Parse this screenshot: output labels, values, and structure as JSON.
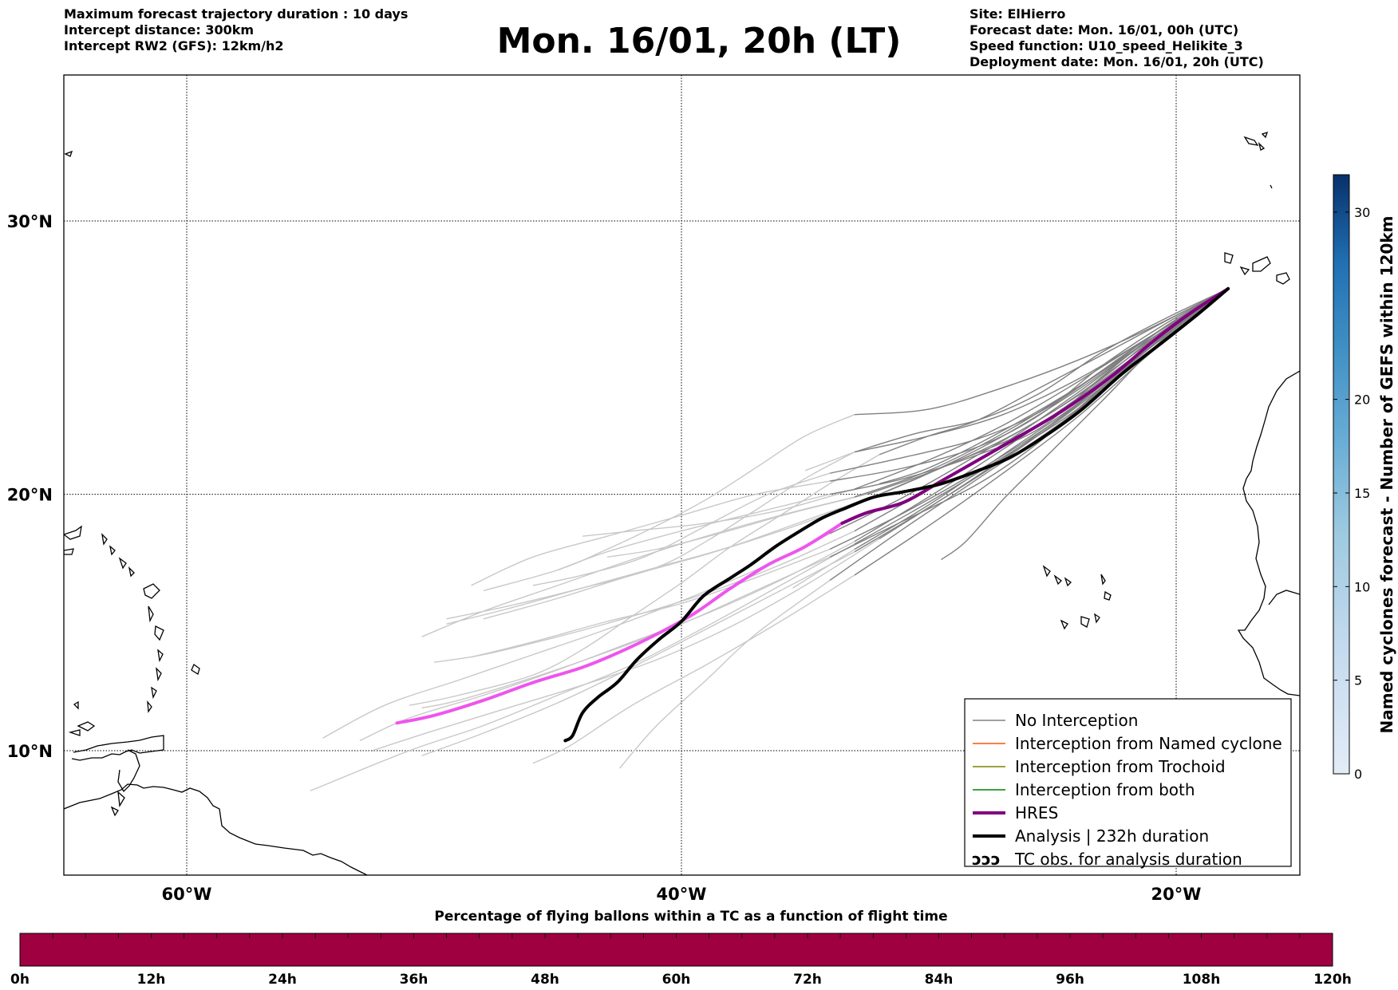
{
  "header": {
    "left": [
      "Maximum forecast trajectory duration : 10 days",
      "Intercept distance: 300km",
      "Intercept RW2 (GFS):  12km/h2"
    ],
    "title": "Mon. 16/01, 20h (LT)",
    "right": [
      "Site: ElHierro",
      "Forecast date: Mon. 16/01, 00h (UTC)",
      "Speed function: U10_speed_Helikite_3",
      "Deployment date: Mon. 16/01, 20h (UTC)"
    ]
  },
  "map": {
    "lon_range": [
      -65,
      15
    ],
    "lat_range": [
      5,
      35
    ],
    "lat_gridlines": [
      {
        "value": 30,
        "label": "30°N"
      },
      {
        "value": 20,
        "label": "20°N"
      },
      {
        "value": 10,
        "label": "10°N"
      }
    ],
    "lon_gridlines": [
      {
        "value": -60,
        "label": "60°W"
      },
      {
        "value": -40,
        "label": "40°W"
      },
      {
        "value": -20,
        "label": "20°W"
      }
    ],
    "colors": {
      "no_interception": "#808080",
      "late_ensemble": "#c8c8c8",
      "named_cyclone": "#ff5500",
      "trochoid": "#808000",
      "both": "#008000",
      "hres": "#800080",
      "hres_late": "#ee55ee",
      "analysis": "#000000"
    }
  },
  "legend": {
    "items": [
      {
        "label": "No Interception",
        "color": "#808080",
        "width": 1.5
      },
      {
        "label": "Interception from Named cyclone",
        "color": "#ff5500",
        "width": 1.5
      },
      {
        "label": "Interception from Trochoid",
        "color": "#808000",
        "width": 1.5
      },
      {
        "label": "Interception from both",
        "color": "#008000",
        "width": 1.5
      },
      {
        "label": "HRES",
        "color": "#800080",
        "width": 4
      },
      {
        "label": "Analysis | 232h duration",
        "color": "#000000",
        "width": 4
      },
      {
        "label": "TC obs. for analysis duration",
        "color": "",
        "width": 0
      }
    ],
    "tc_symbol": "ↄↄↄ"
  },
  "colorbar": {
    "title": "Named cyclones forecast - Number of GEFS within 120km",
    "ticks": [
      "0",
      "5",
      "10",
      "15",
      "20",
      "30"
    ],
    "colors": [
      "#dde7f5",
      "#c8daf0",
      "#a9c9e6",
      "#86b7dc",
      "#5f9fd0",
      "#3f87c1",
      "#2367ae",
      "#0f4d94",
      "#08306b"
    ]
  },
  "bottom_bar": {
    "title": "Percentage of flying ballons within a TC as a function of flight time",
    "ticks": [
      "0h",
      "12h",
      "24h",
      "36h",
      "48h",
      "60h",
      "72h",
      "84h",
      "96h",
      "108h",
      "120h"
    ],
    "color": "#9e0040"
  },
  "trajectories": {
    "start": [
      -17.9,
      27.6
    ],
    "ensemble": [
      [
        [
          -17.9,
          27.6
        ],
        [
          -20.5,
          26.2
        ],
        [
          -23,
          24.4
        ],
        [
          -25.5,
          22.5
        ],
        [
          -28,
          21.5
        ],
        [
          -31,
          20.6
        ],
        [
          -34,
          20.0
        ],
        [
          -37,
          19.3
        ],
        [
          -40,
          18.6
        ],
        [
          -43,
          17.8
        ],
        [
          -45,
          17.1
        ]
      ],
      [
        [
          -17.9,
          27.6
        ],
        [
          -20.5,
          26.0
        ],
        [
          -23,
          24.2
        ],
        [
          -26,
          22.4
        ],
        [
          -29,
          21.2
        ],
        [
          -32,
          20.0
        ],
        [
          -35,
          19.0
        ],
        [
          -38,
          18.0
        ],
        [
          -41,
          17.2
        ],
        [
          -44,
          16.4
        ],
        [
          -47,
          15.6
        ],
        [
          -49.5,
          15.0
        ]
      ],
      [
        [
          -17.9,
          27.6
        ],
        [
          -21,
          25.8
        ],
        [
          -24,
          23.8
        ],
        [
          -27,
          21.9
        ],
        [
          -30,
          20.2
        ],
        [
          -33,
          18.6
        ],
        [
          -36,
          17.3
        ],
        [
          -39,
          16.2
        ],
        [
          -42,
          15.3
        ],
        [
          -45,
          14.5
        ],
        [
          -48,
          13.8
        ],
        [
          -50,
          13.5
        ]
      ],
      [
        [
          -17.9,
          27.6
        ],
        [
          -21,
          25.6
        ],
        [
          -24,
          23.6
        ],
        [
          -27,
          21.7
        ],
        [
          -30,
          19.9
        ],
        [
          -33,
          18.2
        ],
        [
          -36,
          16.7
        ],
        [
          -39,
          15.4
        ],
        [
          -42,
          14.3
        ],
        [
          -45,
          13.2
        ],
        [
          -48,
          12.2
        ],
        [
          -51,
          11.3
        ],
        [
          -53,
          10.4
        ]
      ],
      [
        [
          -17.9,
          27.6
        ],
        [
          -20.5,
          26.1
        ],
        [
          -23.5,
          24.0
        ],
        [
          -26.5,
          22.3
        ],
        [
          -29.5,
          21.0
        ],
        [
          -32.5,
          20.0
        ],
        [
          -35.5,
          19.3
        ],
        [
          -38.5,
          18.5
        ],
        [
          -41,
          17.9
        ],
        [
          -43,
          17.6
        ]
      ],
      [
        [
          -17.9,
          27.6
        ],
        [
          -21,
          25.5
        ],
        [
          -24,
          23.2
        ],
        [
          -27,
          21.4
        ],
        [
          -30,
          19.7
        ],
        [
          -33,
          18.1
        ],
        [
          -36,
          16.5
        ],
        [
          -39,
          14.9
        ],
        [
          -42,
          13.4
        ],
        [
          -45,
          12.2
        ],
        [
          -48,
          11.0
        ],
        [
          -51,
          10.0
        ],
        [
          -55,
          8.4
        ]
      ],
      [
        [
          -17.9,
          27.6
        ],
        [
          -21,
          25.4
        ],
        [
          -24.5,
          22.8
        ],
        [
          -28,
          20.6
        ],
        [
          -31,
          18.7
        ],
        [
          -34,
          16.7
        ],
        [
          -37,
          14.6
        ],
        [
          -39,
          12.8
        ],
        [
          -41,
          11.0
        ],
        [
          -42.5,
          9.3
        ]
      ],
      [
        [
          -17.9,
          27.6
        ],
        [
          -20.5,
          26.3
        ],
        [
          -23,
          24.8
        ],
        [
          -25.5,
          23.0
        ],
        [
          -28,
          21.8
        ],
        [
          -31,
          21.0
        ],
        [
          -34,
          20.5
        ],
        [
          -37,
          20.0
        ],
        [
          -40,
          19.2
        ],
        [
          -43,
          18.4
        ],
        [
          -46,
          17.6
        ],
        [
          -48.5,
          16.5
        ]
      ],
      [
        [
          -17.9,
          27.6
        ],
        [
          -21,
          25.7
        ],
        [
          -24.5,
          23.4
        ],
        [
          -28,
          21.5
        ],
        [
          -31,
          19.9
        ],
        [
          -34,
          18.5
        ],
        [
          -37,
          17.1
        ],
        [
          -40,
          15.9
        ],
        [
          -43,
          14.8
        ],
        [
          -46,
          13.8
        ],
        [
          -49,
          12.8
        ],
        [
          -52,
          11.8
        ],
        [
          -54.5,
          10.5
        ]
      ],
      [
        [
          -17.9,
          27.6
        ],
        [
          -20.5,
          26.4
        ],
        [
          -23,
          25.2
        ],
        [
          -25.5,
          24.0
        ],
        [
          -28,
          22.8
        ],
        [
          -30,
          22.2
        ],
        [
          -32,
          21.5
        ],
        [
          -34,
          20.4
        ],
        [
          -36,
          19.2
        ],
        [
          -38,
          18.0
        ],
        [
          -40,
          16.6
        ],
        [
          -42,
          15.3
        ],
        [
          -44,
          14.0
        ],
        [
          -46,
          13.0
        ],
        [
          -49,
          12.2
        ],
        [
          -51,
          11.8
        ]
      ],
      [
        [
          -17.9,
          27.6
        ],
        [
          -21,
          25.3
        ],
        [
          -24,
          22.9
        ],
        [
          -27,
          20.8
        ],
        [
          -30,
          18.8
        ],
        [
          -33,
          16.9
        ],
        [
          -36,
          15.1
        ],
        [
          -39,
          13.4
        ],
        [
          -42,
          11.8
        ],
        [
          -44.5,
          10.2
        ],
        [
          -46,
          9.5
        ]
      ],
      [
        [
          -17.9,
          27.6
        ],
        [
          -20.5,
          25.9
        ],
        [
          -23,
          24.0
        ],
        [
          -25.5,
          22.0
        ],
        [
          -28,
          20.4
        ],
        [
          -31,
          19.0
        ],
        [
          -34,
          17.6
        ],
        [
          -37,
          16.3
        ],
        [
          -40,
          15.0
        ],
        [
          -43,
          13.9
        ],
        [
          -46,
          12.9
        ],
        [
          -49,
          12.0
        ],
        [
          -50.5,
          11.7
        ]
      ],
      [
        [
          -17.9,
          27.6
        ],
        [
          -21,
          25.9
        ],
        [
          -24,
          24.0
        ],
        [
          -27,
          22.3
        ],
        [
          -30,
          20.9
        ],
        [
          -33,
          19.9
        ],
        [
          -36,
          19.2
        ],
        [
          -39,
          18.4
        ],
        [
          -42,
          17.5
        ],
        [
          -45,
          16.5
        ],
        [
          -48,
          15.5
        ],
        [
          -50.5,
          14.5
        ]
      ],
      [
        [
          -17.9,
          27.6
        ],
        [
          -21,
          26.2
        ],
        [
          -24,
          25.0
        ],
        [
          -27,
          24.0
        ],
        [
          -30,
          23.2
        ],
        [
          -33,
          23.0
        ],
        [
          -35,
          22.2
        ],
        [
          -37,
          21.0
        ],
        [
          -39,
          19.8
        ],
        [
          -41,
          18.8
        ],
        [
          -43,
          17.9
        ],
        [
          -45,
          17.1
        ],
        [
          -48,
          16.3
        ]
      ],
      [
        [
          -17.9,
          27.6
        ],
        [
          -20.5,
          26.0
        ],
        [
          -23,
          24.1
        ],
        [
          -26,
          22.0
        ],
        [
          -29,
          20.1
        ],
        [
          -32,
          18.3
        ],
        [
          -35,
          16.5
        ],
        [
          -38,
          14.9
        ],
        [
          -41,
          13.6
        ],
        [
          -44,
          12.6
        ],
        [
          -47,
          11.7
        ],
        [
          -50,
          10.8
        ],
        [
          -52.5,
          10.0
        ]
      ],
      [
        [
          -17.9,
          27.6
        ],
        [
          -21,
          25.6
        ],
        [
          -24.5,
          23.0
        ],
        [
          -28,
          20.9
        ],
        [
          -31,
          19.3
        ],
        [
          -34,
          17.9
        ],
        [
          -37,
          16.8
        ],
        [
          -40,
          15.8
        ],
        [
          -43,
          15.1
        ],
        [
          -46,
          14.3
        ],
        [
          -48.5,
          13.7
        ]
      ],
      [
        [
          -17.9,
          27.6
        ],
        [
          -20.5,
          26.2
        ],
        [
          -23,
          24.6
        ],
        [
          -25.5,
          23.1
        ],
        [
          -28,
          22.1
        ],
        [
          -31,
          21.4
        ],
        [
          -34,
          20.8
        ],
        [
          -36.5,
          20.0
        ],
        [
          -39,
          18.8
        ],
        [
          -41.5,
          17.6
        ],
        [
          -44,
          16.9
        ],
        [
          -46,
          16.5
        ]
      ],
      [
        [
          -17.9,
          27.6
        ],
        [
          -21,
          25.5
        ],
        [
          -24,
          23.4
        ],
        [
          -27,
          21.5
        ],
        [
          -30,
          19.6
        ],
        [
          -33,
          17.9
        ],
        [
          -35.5,
          16.4
        ]
      ],
      [
        [
          -17.9,
          27.6
        ],
        [
          -21,
          25.8
        ],
        [
          -24,
          24.0
        ],
        [
          -27,
          22.4
        ],
        [
          -30,
          21.0
        ],
        [
          -32,
          20.4
        ]
      ],
      [
        [
          -17.9,
          27.6
        ],
        [
          -20.5,
          25.8
        ],
        [
          -23,
          23.5
        ],
        [
          -25.5,
          21.2
        ],
        [
          -27,
          19.8
        ],
        [
          -28.5,
          18.2
        ],
        [
          -29.5,
          17.5
        ]
      ],
      [
        [
          -17.9,
          27.6
        ],
        [
          -21,
          25.9
        ],
        [
          -24,
          24.3
        ],
        [
          -27,
          23.0
        ],
        [
          -30,
          22.2
        ],
        [
          -33,
          21.6
        ],
        [
          -35,
          20.9
        ]
      ],
      [
        [
          -17.9,
          27.6
        ],
        [
          -20.5,
          26.5
        ],
        [
          -23,
          25.3
        ],
        [
          -25.5,
          23.8
        ],
        [
          -28,
          22.8
        ],
        [
          -30.5,
          22.3
        ],
        [
          -33,
          21.6
        ],
        [
          -35,
          20.6
        ],
        [
          -37,
          19.4
        ],
        [
          -39,
          18.2
        ],
        [
          -41,
          17.2
        ],
        [
          -44,
          16.4
        ],
        [
          -47,
          15.7
        ],
        [
          -49.5,
          15.2
        ]
      ],
      [
        [
          -17.9,
          27.6
        ],
        [
          -21,
          25.5
        ],
        [
          -24,
          23.3
        ],
        [
          -27,
          21.3
        ],
        [
          -30,
          19.5
        ],
        [
          -33,
          17.8
        ],
        [
          -36,
          16.3
        ],
        [
          -39,
          14.8
        ],
        [
          -42,
          13.3
        ],
        [
          -45,
          11.9
        ],
        [
          -48,
          10.7
        ],
        [
          -50.5,
          9.8
        ]
      ],
      [
        [
          -17.9,
          27.6
        ],
        [
          -21,
          25.8
        ],
        [
          -24,
          23.9
        ],
        [
          -27,
          22.2
        ],
        [
          -30,
          20.8
        ],
        [
          -33,
          19.6
        ],
        [
          -36,
          18.6
        ],
        [
          -39,
          17.7
        ],
        [
          -42,
          16.9
        ],
        [
          -45,
          16.0
        ],
        [
          -48,
          15.2
        ]
      ],
      [
        [
          -17.9,
          27.6
        ],
        [
          -21,
          25.9
        ],
        [
          -24,
          24.2
        ],
        [
          -27,
          22.6
        ],
        [
          -30,
          21.3
        ],
        [
          -33,
          20.2
        ],
        [
          -36,
          19.4
        ],
        [
          -39,
          18.9
        ],
        [
          -42,
          18.6
        ],
        [
          -44,
          18.4
        ]
      ]
    ],
    "hres": [
      [
        -17.9,
        27.6
      ],
      [
        -19.3,
        26.8
      ],
      [
        -20.8,
        25.8
      ],
      [
        -22.5,
        24.5
      ],
      [
        -24.5,
        23.2
      ],
      [
        -26.5,
        22.1
      ],
      [
        -28,
        21.3
      ],
      [
        -29.5,
        20.5
      ],
      [
        -31,
        19.7
      ],
      [
        -32.5,
        19.3
      ],
      [
        -33.5,
        18.9
      ],
      [
        -35,
        18.0
      ],
      [
        -36.5,
        17.3
      ],
      [
        -38,
        16.4
      ],
      [
        -39.5,
        15.4
      ],
      [
        -41,
        14.6
      ],
      [
        -42.5,
        13.9
      ],
      [
        -44,
        13.3
      ],
      [
        -46,
        12.7
      ],
      [
        -48,
        12.0
      ],
      [
        -50,
        11.4
      ],
      [
        -51.5,
        11.1
      ]
    ],
    "hres_split_index": 10,
    "analysis": [
      [
        -17.9,
        27.6
      ],
      [
        -19.1,
        26.7
      ],
      [
        -20.5,
        25.7
      ],
      [
        -22.2,
        24.5
      ],
      [
        -23.8,
        23.2
      ],
      [
        -25.3,
        22.2
      ],
      [
        -26.7,
        21.4
      ],
      [
        -28,
        20.9
      ],
      [
        -29.5,
        20.4
      ],
      [
        -31,
        20.1
      ],
      [
        -32.2,
        19.9
      ],
      [
        -33.3,
        19.5
      ],
      [
        -34.3,
        19.1
      ],
      [
        -35.2,
        18.6
      ],
      [
        -36.2,
        18.0
      ],
      [
        -37.2,
        17.3
      ],
      [
        -38,
        16.8
      ],
      [
        -39.1,
        16.1
      ],
      [
        -40,
        15.1
      ],
      [
        -40.9,
        14.4
      ],
      [
        -41.8,
        13.6
      ],
      [
        -42.6,
        12.7
      ],
      [
        -43.4,
        12.1
      ],
      [
        -44,
        11.5
      ],
      [
        -44.4,
        10.6
      ],
      [
        -44.7,
        10.4
      ]
    ]
  }
}
